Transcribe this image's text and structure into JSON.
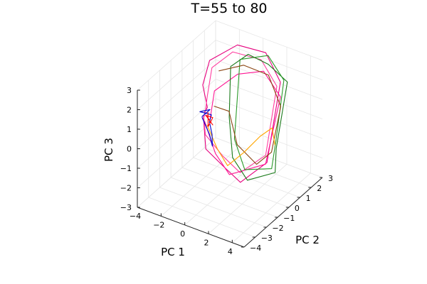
{
  "chart_data": {
    "type": "line",
    "projection": "3d",
    "title": "T=55 to 80",
    "xlabel": "PC 1",
    "ylabel": "PC 2",
    "zlabel": "PC 3",
    "xlim": [
      -4,
      5
    ],
    "ylim": [
      -4,
      3
    ],
    "zlim": [
      -3,
      3
    ],
    "xticks": [
      "−4",
      "−2",
      "0",
      "2",
      "4"
    ],
    "yticks": [
      "−4",
      "−3",
      "−2",
      "−1",
      "0",
      "1",
      "2",
      "3"
    ],
    "zticks": [
      "−3",
      "−2",
      "−1",
      "0",
      "1",
      "2",
      "3"
    ],
    "grid": true,
    "legend": "none",
    "series": [
      {
        "color": "#e6007e",
        "points": [
          [
            -4.0,
            2.0,
            -1.2
          ],
          [
            -3.0,
            1.2,
            -0.3
          ],
          [
            -3.2,
            1.0,
            0.9
          ],
          [
            -3.0,
            1.4,
            2.0
          ],
          [
            -1.6,
            2.4,
            2.6
          ],
          [
            0.6,
            2.6,
            2.6
          ],
          [
            2.4,
            2.0,
            1.8
          ],
          [
            4.1,
            -1.0,
            -0.4
          ],
          [
            2.8,
            -2.0,
            -1.2
          ],
          [
            1.0,
            -1.5,
            -1.1
          ],
          [
            -2.0,
            0.0,
            -1.6
          ],
          [
            -4.0,
            1.9,
            -1.3
          ]
        ]
      },
      {
        "color": "#ff3fa0",
        "points": [
          [
            -3.6,
            1.6,
            -1.1
          ],
          [
            -3.1,
            1.3,
            0.2
          ],
          [
            -2.9,
            1.5,
            1.6
          ],
          [
            -1.8,
            2.2,
            2.3
          ],
          [
            0.4,
            2.4,
            2.3
          ],
          [
            2.2,
            1.9,
            1.6
          ],
          [
            3.8,
            -0.8,
            -0.2
          ],
          [
            2.4,
            -1.6,
            -1.0
          ],
          [
            0.0,
            -0.6,
            -1.2
          ],
          [
            -2.6,
            0.6,
            -1.3
          ],
          [
            -3.6,
            1.5,
            -1.0
          ]
        ]
      },
      {
        "color": "#ff1493",
        "points": [
          [
            -3.9,
            2.1,
            -1.4
          ],
          [
            -2.6,
            1.0,
            -0.8
          ],
          [
            -2.5,
            1.3,
            0.6
          ],
          [
            -1.2,
            2.0,
            1.4
          ],
          [
            0.8,
            2.2,
            1.9
          ],
          [
            2.6,
            1.8,
            1.2
          ],
          [
            3.6,
            -0.6,
            -0.8
          ],
          [
            1.5,
            -1.6,
            -1.3
          ],
          [
            -1.0,
            -0.2,
            -1.5
          ],
          [
            -3.8,
            1.8,
            -1.5
          ]
        ]
      },
      {
        "color": "#1a7a1a",
        "points": [
          [
            -1.6,
            1.8,
            1.8
          ],
          [
            -0.6,
            2.3,
            2.4
          ],
          [
            1.0,
            2.4,
            2.2
          ],
          [
            2.8,
            2.2,
            1.8
          ],
          [
            4.5,
            -0.6,
            0.2
          ],
          [
            4.6,
            -0.8,
            -0.9
          ],
          [
            3.2,
            -1.8,
            -1.1
          ],
          [
            1.2,
            -1.0,
            -0.8
          ],
          [
            -0.4,
            0.4,
            0.2
          ],
          [
            -1.6,
            1.8,
            1.8
          ]
        ]
      },
      {
        "color": "#2a9a2a",
        "points": [
          [
            -1.0,
            2.0,
            2.2
          ],
          [
            0.8,
            2.6,
            2.5
          ],
          [
            2.6,
            2.1,
            1.9
          ],
          [
            4.3,
            -0.4,
            0.5
          ],
          [
            4.4,
            -0.9,
            -0.7
          ],
          [
            2.6,
            -1.4,
            -0.9
          ],
          [
            0.6,
            -0.2,
            -0.4
          ],
          [
            -1.0,
            2.0,
            2.2
          ]
        ]
      },
      {
        "color": "#8b4513",
        "points": [
          [
            -2.4,
            1.6,
            1.5
          ],
          [
            -0.8,
            2.1,
            1.9
          ],
          [
            1.2,
            2.2,
            1.8
          ],
          [
            3.0,
            1.4,
            1.0
          ],
          [
            4.2,
            -0.7,
            0.0
          ],
          [
            3.6,
            -1.4,
            -0.4
          ],
          [
            1.4,
            -0.8,
            -0.2
          ],
          [
            -0.8,
            0.8,
            0.2
          ],
          [
            -2.8,
            1.6,
            -0.4
          ]
        ]
      },
      {
        "color": "#ffa500",
        "points": [
          [
            -3.4,
            1.6,
            -1.5
          ],
          [
            -1.6,
            0.6,
            -1.8
          ],
          [
            0.4,
            -0.6,
            -1.6
          ],
          [
            1.4,
            -0.2,
            -0.9
          ],
          [
            2.2,
            0.4,
            -0.2
          ],
          [
            3.4,
            0.2,
            0.6
          ],
          [
            4.3,
            -0.5,
            0.3
          ]
        ]
      },
      {
        "color": "#0000cd",
        "points": [
          [
            -4.4,
            2.2,
            -1.6
          ],
          [
            -4.0,
            2.5,
            -1.3
          ],
          [
            -4.2,
            1.8,
            -1.1
          ],
          [
            -3.7,
            2.3,
            -1.4
          ],
          [
            -3.2,
            1.6,
            -1.3
          ],
          [
            -2.6,
            1.2,
            -1.6
          ],
          [
            -2.2,
            0.8,
            -1.9
          ],
          [
            -3.0,
            1.4,
            -1.8
          ],
          [
            -4.2,
            2.0,
            -1.5
          ]
        ]
      },
      {
        "color": "#ff0000",
        "points": [
          [
            -3.8,
            2.1,
            -1.2
          ],
          [
            -3.5,
            1.8,
            -1.7
          ],
          [
            -3.3,
            2.0,
            -1.3
          ],
          [
            -3.6,
            1.7,
            -1.1
          ],
          [
            -3.2,
            1.9,
            -1.6
          ]
        ]
      }
    ]
  }
}
